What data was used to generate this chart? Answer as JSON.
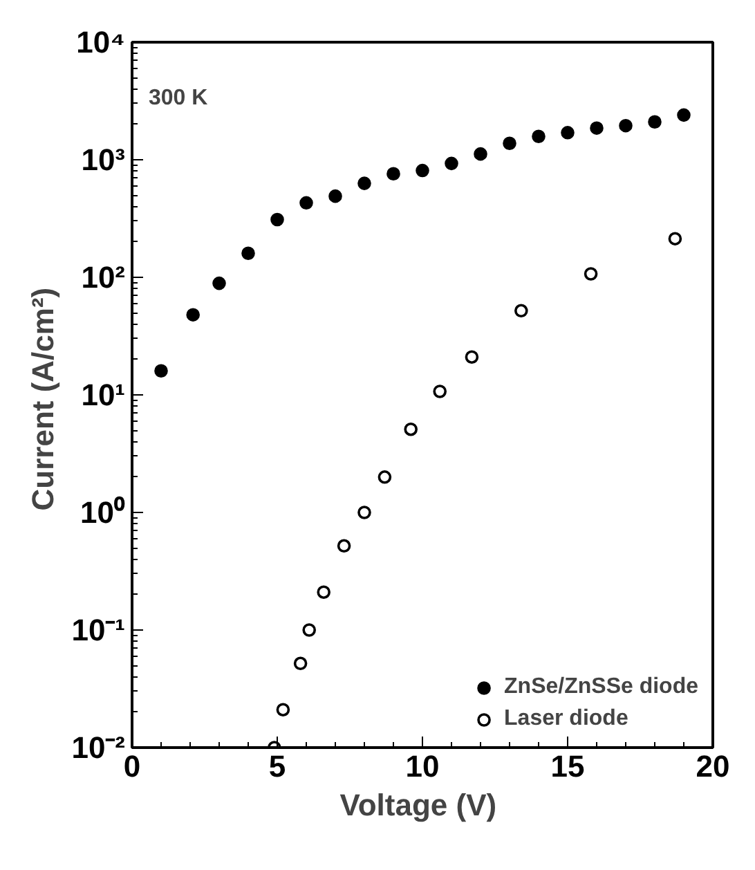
{
  "chart_data": {
    "type": "scatter",
    "xlabel": "Voltage  (V)",
    "ylabel": "Current  (A/cm²)",
    "log": "y",
    "xlim": [
      0,
      20
    ],
    "xticks": [
      0,
      5,
      10,
      15,
      20
    ],
    "ylim": [
      0.01,
      10000
    ],
    "yticks": [
      {
        "value": 0.01,
        "label": "10⁻²"
      },
      {
        "value": 0.1,
        "label": "10⁻¹"
      },
      {
        "value": 1,
        "label": "10⁰"
      },
      {
        "value": 10,
        "label": "10¹"
      },
      {
        "value": 100,
        "label": "10²"
      },
      {
        "value": 1000,
        "label": "10³"
      },
      {
        "value": 10000,
        "label": "10⁴"
      }
    ],
    "grid": false,
    "legend": "bottom right",
    "annotations": [
      "300 K"
    ],
    "series": [
      {
        "name": "ZnSe/ZnSSe diode",
        "color": "#000000",
        "marker": "circle",
        "x": [
          1.0,
          2.1,
          3.0,
          4.0,
          5.0,
          6.0,
          7.0,
          8.0,
          9.0,
          10.0,
          11.0,
          12.0,
          13.0,
          14.0,
          15.0,
          16.0,
          17.0,
          18.0,
          19.0
        ],
        "values": [
          16,
          48,
          89,
          160,
          310,
          430,
          490,
          630,
          760,
          810,
          930,
          1120,
          1380,
          1580,
          1700,
          1860,
          1950,
          2100,
          2400
        ]
      },
      {
        "name": "Laser diode",
        "color": "#000000",
        "marker": "circle_open",
        "x": [
          4.9,
          5.2,
          5.8,
          6.1,
          6.6,
          7.3,
          8.0,
          8.7,
          9.6,
          10.6,
          11.7,
          13.4,
          15.8,
          18.7
        ],
        "values": [
          0.01,
          0.021,
          0.052,
          0.1,
          0.21,
          0.52,
          1.0,
          2.0,
          5.1,
          10.7,
          21,
          52,
          107,
          213
        ]
      }
    ]
  }
}
